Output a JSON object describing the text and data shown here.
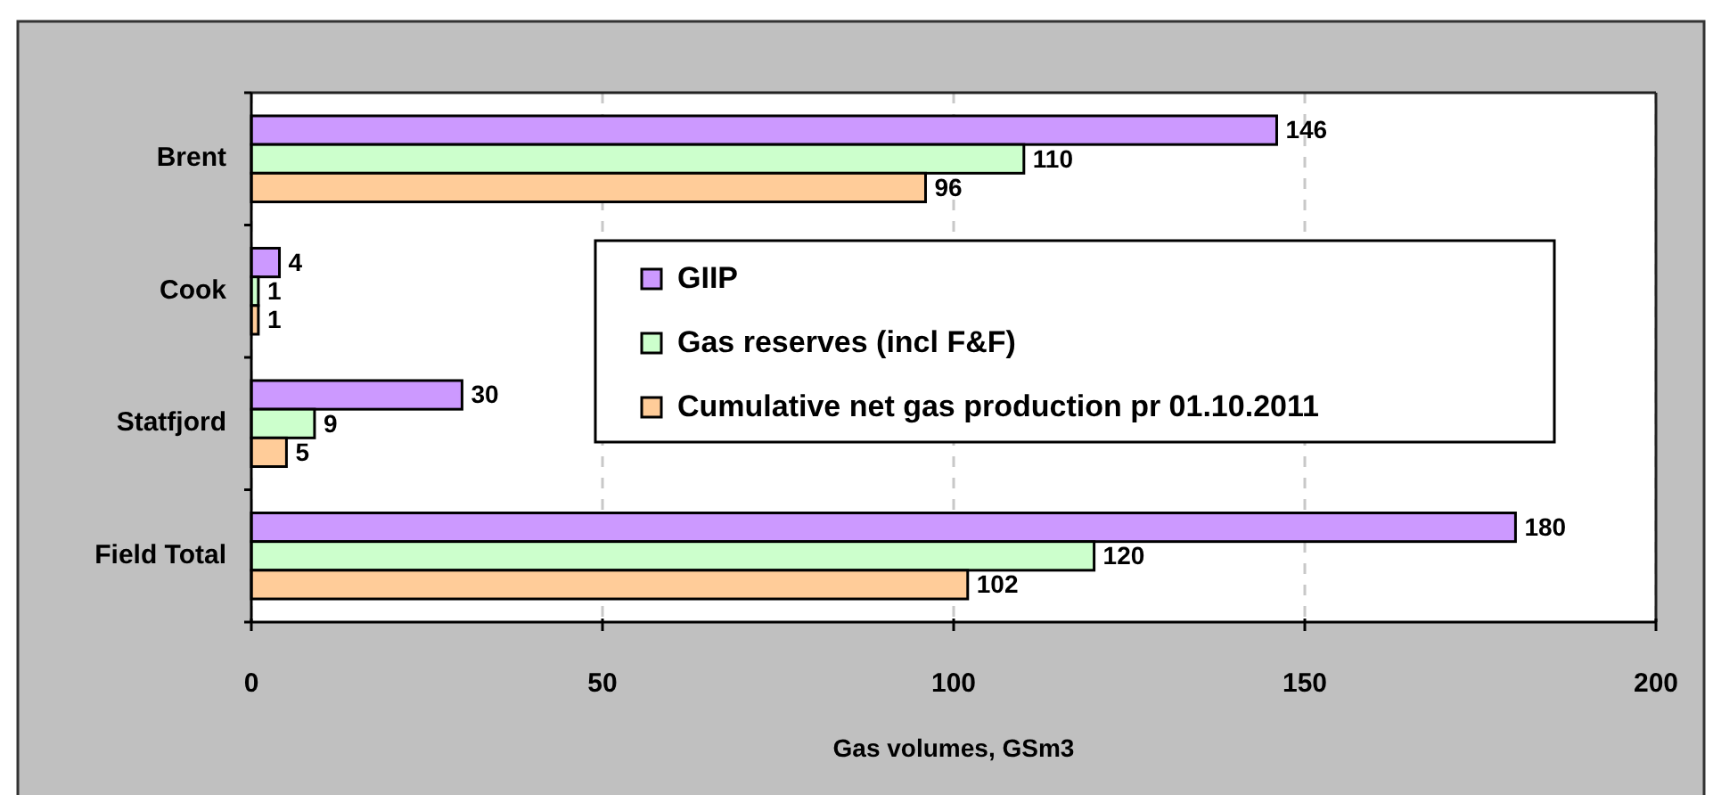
{
  "chart_data": {
    "type": "bar",
    "orientation": "horizontal",
    "categories": [
      "Brent",
      "Cook",
      "Statfjord",
      "Field Total"
    ],
    "series": [
      {
        "name": "GIIP",
        "color": "#cc99ff",
        "values": [
          146,
          4,
          30,
          180
        ]
      },
      {
        "name": "Gas reserves (incl F&F)",
        "color": "#ccffcc",
        "values": [
          110,
          1,
          9,
          120
        ]
      },
      {
        "name": "Cumulative net gas production pr 01.10.2011",
        "color": "#ffcc99",
        "values": [
          96,
          1,
          5,
          102
        ]
      }
    ],
    "xlabel": "Gas volumes, GSm3",
    "xlim": [
      0,
      200
    ],
    "xticks": [
      0,
      50,
      100,
      150,
      200
    ],
    "grid": "x",
    "legend": "right",
    "data_labels": true
  }
}
